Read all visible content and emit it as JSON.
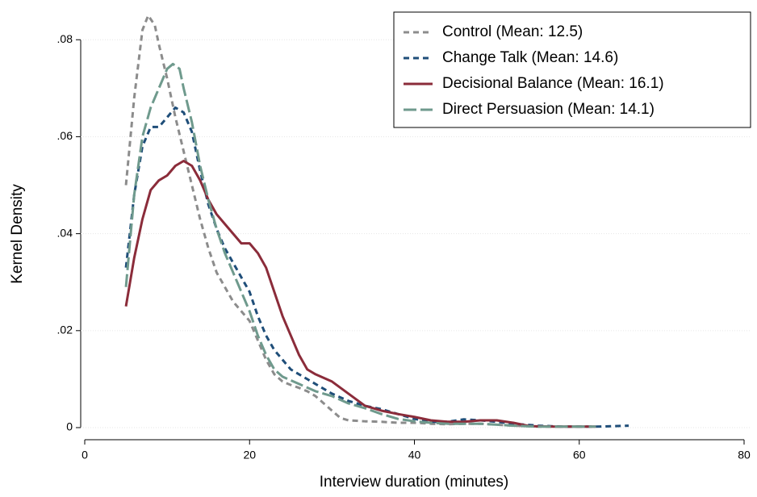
{
  "chart_data": {
    "type": "line",
    "xlabel": "Interview duration (minutes)",
    "ylabel": "Kernel Density",
    "xlim": [
      0,
      80
    ],
    "ylim": [
      0,
      0.0857
    ],
    "xticks": [
      0,
      20,
      40,
      60,
      80
    ],
    "yticks": [
      0,
      {
        "value": 0.02,
        "label": ".02"
      },
      {
        "value": 0.04,
        "label": ".04"
      },
      {
        "value": 0.06,
        "label": ".06"
      },
      {
        "value": 0.08,
        "label": ".08"
      }
    ],
    "grid": true,
    "legend": "top-right",
    "series": [
      {
        "name": "Control (Mean: 12.5)",
        "color": "#8c8c8c",
        "dash": "short",
        "x": [
          5,
          6,
          7,
          7.7,
          8.5,
          9,
          10,
          11,
          12,
          13,
          14,
          15,
          16,
          17,
          18,
          19,
          20,
          21,
          22,
          23,
          24,
          25,
          26,
          27,
          28,
          29,
          30,
          31,
          32,
          34,
          36,
          38,
          40,
          42,
          44,
          46,
          48,
          50,
          52,
          55,
          58,
          61
        ],
        "values": [
          0.05,
          0.068,
          0.082,
          0.085,
          0.083,
          0.079,
          0.072,
          0.064,
          0.057,
          0.05,
          0.043,
          0.037,
          0.032,
          0.029,
          0.026,
          0.024,
          0.022,
          0.018,
          0.014,
          0.011,
          0.0095,
          0.0088,
          0.0082,
          0.0075,
          0.0065,
          0.005,
          0.0035,
          0.002,
          0.0015,
          0.0013,
          0.0012,
          0.001,
          0.001,
          0.0008,
          0.0007,
          0.0008,
          0.0008,
          0.0006,
          0.0004,
          0.0002,
          0.0002,
          0.0002
        ]
      },
      {
        "name": "Change Talk (Mean: 14.6)",
        "color": "#1f4e79",
        "dash": "short",
        "x": [
          5,
          6,
          7,
          8,
          9,
          10,
          11,
          12,
          13,
          14,
          15,
          16,
          17,
          18,
          19,
          20,
          21,
          22,
          23,
          24,
          25,
          26,
          28,
          30,
          32,
          34,
          36,
          38,
          40,
          42,
          44,
          46,
          48,
          50,
          52,
          55,
          58,
          62,
          66
        ],
        "values": [
          0.033,
          0.048,
          0.058,
          0.062,
          0.062,
          0.064,
          0.066,
          0.065,
          0.061,
          0.053,
          0.046,
          0.041,
          0.037,
          0.034,
          0.031,
          0.028,
          0.023,
          0.019,
          0.016,
          0.014,
          0.012,
          0.011,
          0.009,
          0.007,
          0.0055,
          0.0045,
          0.0038,
          0.0028,
          0.0018,
          0.0012,
          0.0012,
          0.0017,
          0.0015,
          0.0012,
          0.0008,
          0.0004,
          0.0002,
          0.0002,
          0.0004
        ]
      },
      {
        "name": "Decisional Balance (Mean: 16.1)",
        "color": "#8b2c3a",
        "dash": "solid",
        "x": [
          5,
          6,
          7,
          8,
          9,
          10,
          11,
          12,
          13,
          14,
          15,
          16,
          17,
          18,
          19,
          20,
          21,
          22,
          23,
          24,
          25,
          26,
          27,
          28,
          30,
          32,
          34,
          36,
          38,
          40,
          42,
          44,
          46,
          48,
          50,
          52,
          54,
          57,
          60,
          62
        ],
        "values": [
          0.025,
          0.035,
          0.043,
          0.049,
          0.051,
          0.052,
          0.054,
          0.055,
          0.054,
          0.051,
          0.047,
          0.044,
          0.042,
          0.04,
          0.038,
          0.038,
          0.036,
          0.033,
          0.028,
          0.023,
          0.019,
          0.015,
          0.012,
          0.011,
          0.0095,
          0.007,
          0.0045,
          0.0035,
          0.0028,
          0.0022,
          0.0015,
          0.0012,
          0.0012,
          0.0015,
          0.0015,
          0.001,
          0.0003,
          0.0002,
          0.0002,
          0.0002
        ]
      },
      {
        "name": "Direct Persuasion (Mean: 14.1)",
        "color": "#6f9a8d",
        "dash": "long",
        "x": [
          5,
          6,
          7,
          8,
          9,
          10,
          10.7,
          11.5,
          12,
          13,
          14,
          15,
          16,
          17,
          18,
          19,
          20,
          21,
          22,
          23,
          24,
          26,
          28,
          30,
          32,
          34,
          36,
          38,
          40,
          42,
          44,
          46,
          48,
          50,
          52,
          55,
          58,
          62
        ],
        "values": [
          0.029,
          0.048,
          0.06,
          0.066,
          0.07,
          0.074,
          0.075,
          0.074,
          0.07,
          0.063,
          0.054,
          0.047,
          0.041,
          0.036,
          0.032,
          0.028,
          0.024,
          0.019,
          0.015,
          0.012,
          0.0105,
          0.009,
          0.0075,
          0.0065,
          0.005,
          0.004,
          0.0028,
          0.0018,
          0.0013,
          0.001,
          0.0008,
          0.0008,
          0.0008,
          0.0006,
          0.0004,
          0.0002,
          0.0002,
          0.0002
        ]
      }
    ]
  }
}
